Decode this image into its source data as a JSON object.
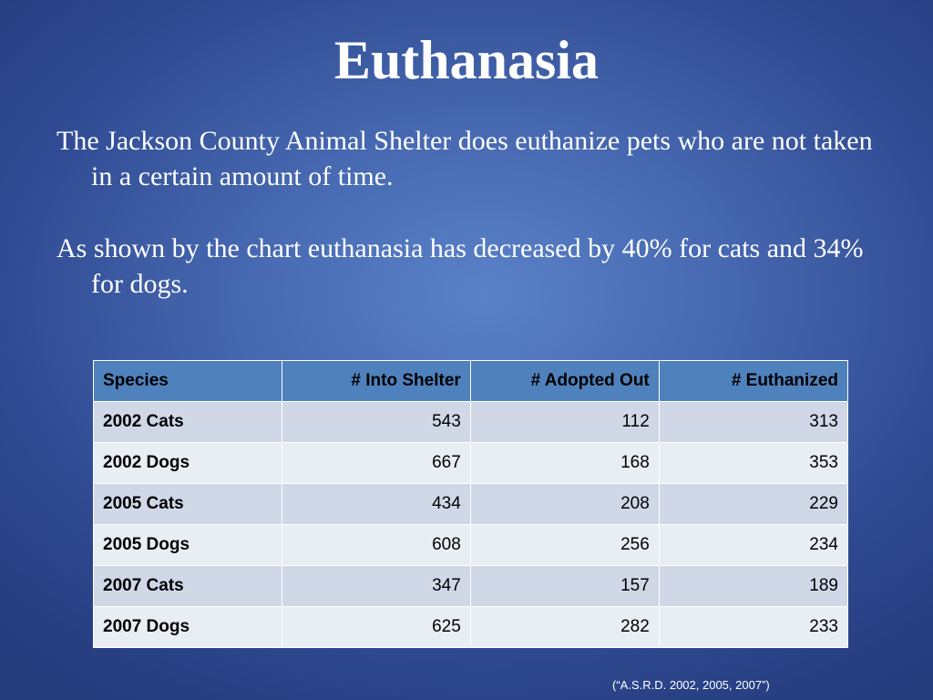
{
  "slide": {
    "title": "Euthanasia",
    "paragraphs": [
      "The Jackson County Animal Shelter does euthanize pets who are not taken in a certain amount of time.",
      "As shown by the chart euthanasia has decreased by 40% for cats and 34% for dogs."
    ],
    "source": "(“A.S.R.D. 2002, 2005, 2007”)"
  },
  "table": {
    "headers": [
      "Species",
      "# Into Shelter",
      "# Adopted Out",
      "# Euthanized"
    ],
    "rows": [
      [
        "2002 Cats",
        "543",
        "112",
        "313"
      ],
      [
        "2002 Dogs",
        "667",
        "168",
        "353"
      ],
      [
        "2005 Cats",
        "434",
        "208",
        "229"
      ],
      [
        "2005 Dogs",
        "608",
        "256",
        "234"
      ],
      [
        "2007 Cats",
        "347",
        "157",
        "189"
      ],
      [
        "2007 Dogs",
        "625",
        "282",
        "233"
      ]
    ]
  },
  "colors": {
    "header_fill": "#4f81bd",
    "row_fill_odd": "#d0d8e8",
    "row_fill_even": "#e9edf4",
    "background": "#4668b0"
  }
}
